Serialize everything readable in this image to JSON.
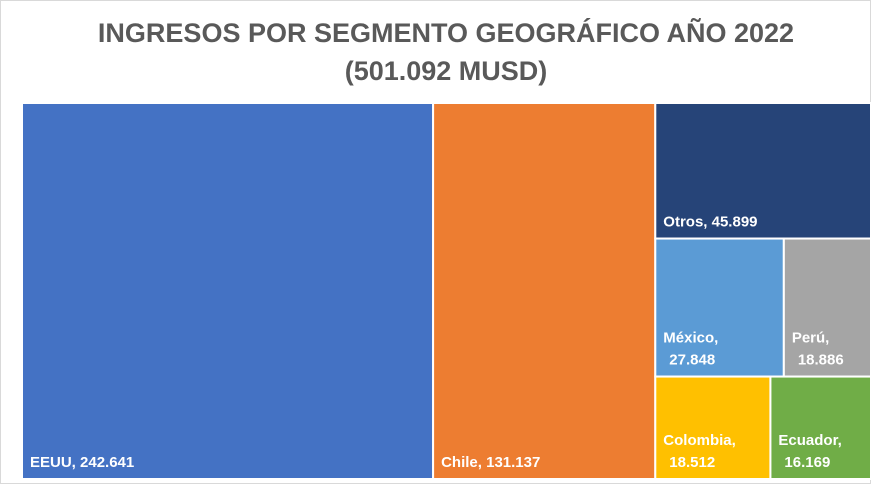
{
  "chart_data": {
    "type": "treemap",
    "title": "INGRESOS POR SEGMENTO GEOGRÁFICO AÑO 2022",
    "subtitle": "(501.092 MUSD)",
    "values": [
      242641,
      131137,
      45899,
      27848,
      18886,
      18512,
      16169
    ],
    "value_labels": [
      "EEUU, 242.641",
      "Chile, 131.137",
      "Otros, 45.899",
      "México, 27.848",
      "Perú, 18.886",
      "Colombia, 18.512",
      "Ecuador, 16.169"
    ],
    "colors": [
      "#4472c4",
      "#ed7d31",
      "#264478",
      "#5b9bd5",
      "#a5a5a5",
      "#ffc000",
      "#70ad47"
    ]
  }
}
